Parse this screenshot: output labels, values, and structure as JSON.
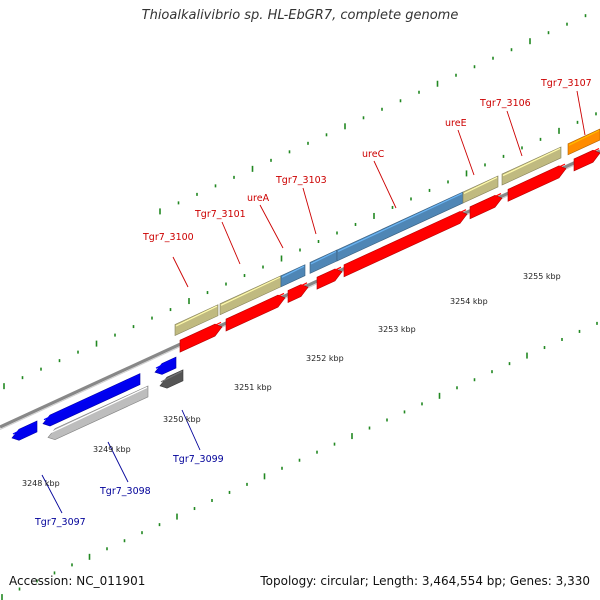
{
  "title": "Thioalkalivibrio sp. HL-EbGR7, complete genome",
  "footer": {
    "accession": "Accession: NC_011901",
    "summary": "Topology: circular; Length: 3,464,554 bp; Genes: 3,330"
  },
  "colors": {
    "forward_cds": "#ff0000",
    "reverse_cds": "#0000ee",
    "khaki_gene": "#c0ba80",
    "steel_gene": "#4f86b5",
    "orange_gene": "#ff8c00",
    "grey_gene": "#bdbdbd",
    "dark_gene": "#555555",
    "backbone": "#888888",
    "tick": "#228822",
    "label_top": "#cc0000",
    "label_bottom": "#000099"
  },
  "top_labels": [
    {
      "text": "Tgr7_3100"
    },
    {
      "text": "Tgr7_3101"
    },
    {
      "text": "ureA"
    },
    {
      "text": "Tgr7_3103"
    },
    {
      "text": "ureC"
    },
    {
      "text": "ureE"
    },
    {
      "text": "Tgr7_3106"
    },
    {
      "text": "Tgr7_3107"
    }
  ],
  "bottom_labels": [
    {
      "text": "Tgr7_3099"
    },
    {
      "text": "Tgr7_3098"
    },
    {
      "text": "Tgr7_3097"
    }
  ],
  "kbp_labels": [
    {
      "text": "3248 kbp"
    },
    {
      "text": "3249 kbp"
    },
    {
      "text": "3250 kbp"
    },
    {
      "text": "3251 kbp"
    },
    {
      "text": "3252 kbp"
    },
    {
      "text": "3253 kbp"
    },
    {
      "text": "3254 kbp"
    },
    {
      "text": "3255 kbp"
    }
  ]
}
